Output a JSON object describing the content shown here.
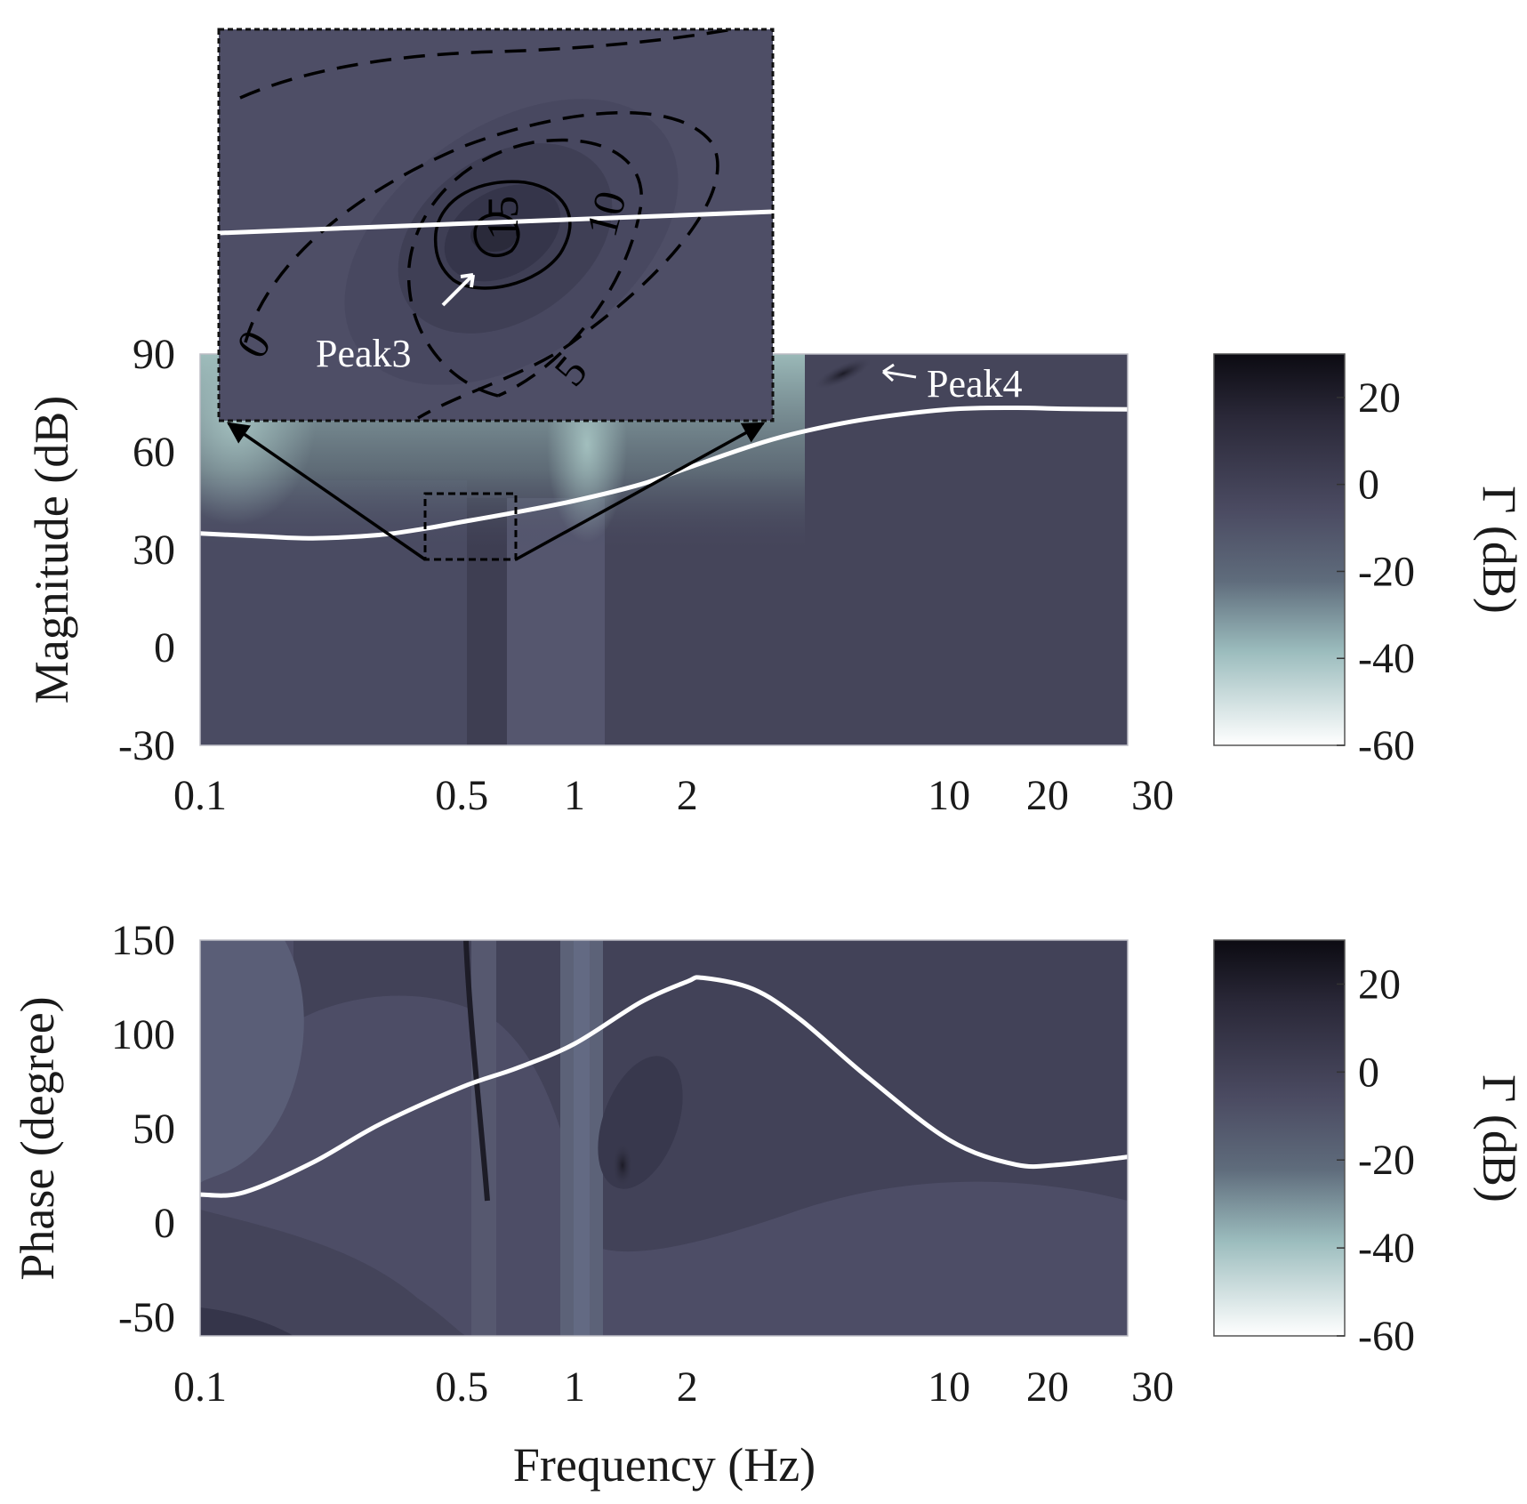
{
  "chart_data": [
    {
      "type": "heatmap",
      "panel": "magnitude",
      "xlabel": "",
      "ylabel": "Magnitude (dB)",
      "x_scale": "log",
      "xlim": [
        0.1,
        30
      ],
      "ylim": [
        -30,
        90
      ],
      "x_ticks": [
        0.1,
        0.5,
        1,
        2,
        10,
        20,
        30
      ],
      "x_tick_labels": [
        "0.1",
        "0.5",
        "1",
        "2",
        "10",
        "20",
        "30"
      ],
      "y_ticks": [
        -30,
        0,
        30,
        60,
        90
      ],
      "y_tick_labels": [
        "-30",
        "0",
        "30",
        "60",
        "90"
      ],
      "colorbar": {
        "label": "Γ (dB)",
        "range": [
          -60,
          30
        ],
        "ticks": [
          20,
          0,
          -20,
          -40,
          -60
        ],
        "tick_labels": [
          "20",
          "0",
          "-20",
          "-40",
          "-60"
        ]
      },
      "curve": {
        "name": "magnitude response",
        "x": [
          0.1,
          0.15,
          0.2,
          0.3,
          0.4,
          0.5,
          0.7,
          1,
          1.5,
          2,
          3,
          4,
          6,
          10,
          15,
          20,
          30
        ],
        "y": [
          35,
          34,
          33.5,
          34.5,
          36.5,
          38.5,
          41.5,
          45,
          50,
          55,
          62,
          66,
          70,
          73,
          73.5,
          73.2,
          73
        ]
      },
      "annotations": [
        {
          "text": "Peak4",
          "x": 5.5,
          "y": 84
        }
      ],
      "inset": {
        "zoom_region": {
          "x": [
            0.43,
            0.72
          ],
          "y": [
            28,
            50
          ]
        },
        "annotation": "Peak3",
        "contour_labels": [
          "0",
          "5",
          "10",
          "15"
        ]
      }
    },
    {
      "type": "heatmap",
      "panel": "phase",
      "xlabel": "Frequency (Hz)",
      "ylabel": "Phase (degree)",
      "x_scale": "log",
      "xlim": [
        0.1,
        30
      ],
      "ylim": [
        -60,
        150
      ],
      "x_ticks": [
        0.1,
        0.5,
        1,
        2,
        10,
        20,
        30
      ],
      "x_tick_labels": [
        "0.1",
        "0.5",
        "1",
        "2",
        "10",
        "20",
        "30"
      ],
      "y_ticks": [
        -50,
        0,
        50,
        100,
        150
      ],
      "y_tick_labels": [
        "-50",
        "0",
        "50",
        "100",
        "150"
      ],
      "colorbar": {
        "label": "Γ (dB)",
        "range": [
          -60,
          30
        ],
        "ticks": [
          20,
          0,
          -20,
          -40,
          -60
        ],
        "tick_labels": [
          "20",
          "0",
          "-20",
          "-40",
          "-60"
        ]
      },
      "curve": {
        "name": "phase response",
        "x": [
          0.1,
          0.13,
          0.2,
          0.3,
          0.5,
          0.7,
          1,
          1.5,
          2,
          2.2,
          3,
          4,
          6,
          10,
          15,
          20,
          30
        ],
        "y": [
          15,
          16,
          32,
          52,
          72,
          82,
          95,
          117,
          128,
          130,
          124,
          108,
          78,
          44,
          31,
          31,
          35
        ]
      }
    }
  ]
}
